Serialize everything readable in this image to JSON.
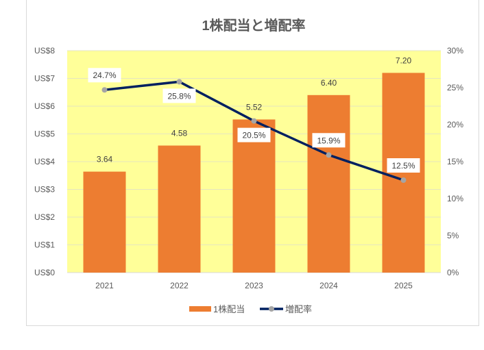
{
  "chart_data": {
    "type": "bar+line",
    "title": "1株配当と増配率",
    "categories": [
      "2021",
      "2022",
      "2023",
      "2024",
      "2025"
    ],
    "series": [
      {
        "name": "1株配当",
        "type": "bar",
        "axis": "left",
        "values": [
          3.64,
          4.58,
          5.52,
          6.4,
          7.2
        ],
        "labels": [
          "3.64",
          "4.58",
          "5.52",
          "6.40",
          "7.20"
        ],
        "color": "#ED7D31"
      },
      {
        "name": "増配率",
        "type": "line",
        "axis": "right",
        "values": [
          24.7,
          25.8,
          20.5,
          15.9,
          12.5
        ],
        "labels": [
          "24.7%",
          "25.8%",
          "20.5%",
          "15.9%",
          "12.5%"
        ],
        "color": "#002060",
        "marker_color": "#A5A5A5"
      }
    ],
    "y_left": {
      "range": [
        0,
        8
      ],
      "ticks": [
        "US$0",
        "US$1",
        "US$2",
        "US$3",
        "US$4",
        "US$5",
        "US$6",
        "US$7",
        "US$8"
      ]
    },
    "y_right": {
      "range": [
        0,
        30
      ],
      "ticks": [
        "0%",
        "5%",
        "10%",
        "15%",
        "20%",
        "25%",
        "30%"
      ]
    },
    "plot_background": "#FFFF99",
    "grid": true,
    "legend": "bottom"
  }
}
